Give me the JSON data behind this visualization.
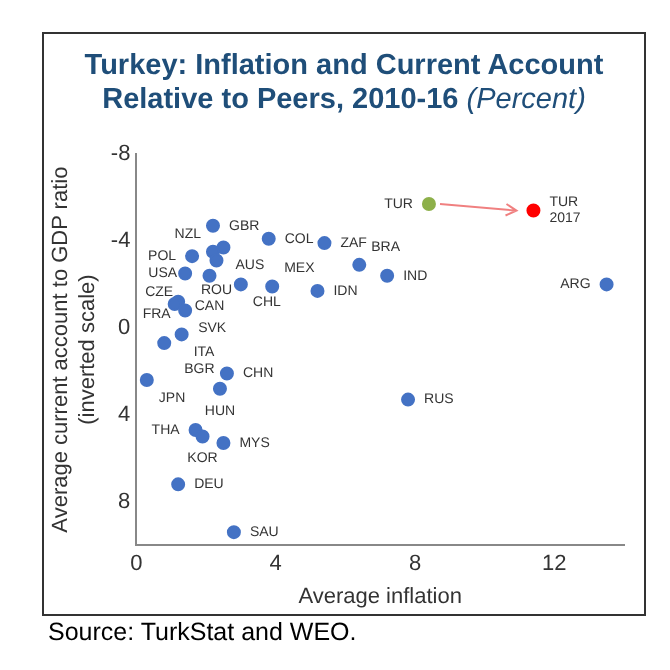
{
  "chart_data": {
    "type": "scatter",
    "title": "Turkey: Inflation and Current Account Relative to Peers, 2010-16",
    "subtitle": "(Percent)",
    "xlabel": "Average inflation",
    "ylabel": "Average current account to GDP ratio (inverted scale)",
    "xlim": [
      0,
      14
    ],
    "xticks": [
      0,
      4,
      8,
      12
    ],
    "ylim": [
      10,
      -8
    ],
    "yticks": [
      -8,
      -4,
      0,
      4,
      8
    ],
    "grid": false,
    "legend": false,
    "marker": "circle",
    "series": [
      {
        "color": "#4472c4",
        "x": [
          2.2,
          3.8,
          5.4,
          2.2,
          2.5,
          1.6,
          2.3,
          1.4,
          2.1,
          3.0,
          3.9,
          5.2,
          6.4,
          7.2,
          13.5,
          7.8,
          1.2,
          1.1,
          1.4,
          1.3,
          0.8,
          0.3,
          2.6,
          2.4,
          1.7,
          1.9,
          2.5,
          1.2,
          2.8
        ],
        "values": [
          -4.7,
          -4.1,
          -3.9,
          -3.5,
          -3.7,
          -3.3,
          -3.1,
          -2.5,
          -2.4,
          -2.0,
          -1.9,
          -1.7,
          -2.9,
          -2.4,
          -2.0,
          3.3,
          -1.2,
          -1.1,
          -0.8,
          0.3,
          0.7,
          2.4,
          2.1,
          2.8,
          4.7,
          5.0,
          5.3,
          7.2,
          9.4
        ]
      },
      {
        "color": "#8db04a",
        "x": [
          8.4
        ],
        "values": [
          -5.7
        ]
      },
      {
        "color": "#ff0000",
        "x": [
          11.4
        ],
        "values": [
          -5.4
        ]
      }
    ],
    "annotations": [
      {
        "text": "GBR",
        "x": 2.2,
        "y": -4.7
      },
      {
        "text": "COL",
        "x": 3.8,
        "y": -4.1
      },
      {
        "text": "ZAF",
        "x": 5.4,
        "y": -3.9
      },
      {
        "text": "NZL",
        "x": 2.2,
        "y": -3.5
      },
      {
        "text": "AUS",
        "x": 2.5,
        "y": -3.7
      },
      {
        "text": "POL",
        "x": 1.6,
        "y": -3.3
      },
      {
        "text": "ROU",
        "x": 2.3,
        "y": -3.1
      },
      {
        "text": "USA",
        "x": 1.4,
        "y": -2.5
      },
      {
        "text": "CAN",
        "x": 2.1,
        "y": -2.4
      },
      {
        "text": "CHL",
        "x": 3.0,
        "y": -2.0
      },
      {
        "text": "MEX",
        "x": 3.9,
        "y": -1.9
      },
      {
        "text": "IDN",
        "x": 5.2,
        "y": -1.7
      },
      {
        "text": "BRA",
        "x": 6.4,
        "y": -2.9
      },
      {
        "text": "IND",
        "x": 7.2,
        "y": -2.4
      },
      {
        "text": "ARG",
        "x": 13.5,
        "y": -2.0
      },
      {
        "text": "RUS",
        "x": 7.8,
        "y": 3.3
      },
      {
        "text": "SVK",
        "x": 1.2,
        "y": -1.2
      },
      {
        "text": "FRA",
        "x": 1.1,
        "y": -1.1
      },
      {
        "text": "CZE",
        "x": 1.4,
        "y": -0.8
      },
      {
        "text": "ITA",
        "x": 1.3,
        "y": 0.3
      },
      {
        "text": "BGR",
        "x": 0.8,
        "y": 0.7
      },
      {
        "text": "JPN",
        "x": 0.3,
        "y": 2.4
      },
      {
        "text": "CHN",
        "x": 2.6,
        "y": 2.1
      },
      {
        "text": "HUN",
        "x": 2.4,
        "y": 2.8
      },
      {
        "text": "THA",
        "x": 1.7,
        "y": 4.7
      },
      {
        "text": "KOR",
        "x": 1.9,
        "y": 5.0
      },
      {
        "text": "MYS",
        "x": 2.5,
        "y": 5.3
      },
      {
        "text": "DEU",
        "x": 1.2,
        "y": 7.2
      },
      {
        "text": "SAU",
        "x": 2.8,
        "y": 9.4
      },
      {
        "text": "TUR",
        "x": 8.4,
        "y": -5.7
      },
      {
        "text": "TUR 2017",
        "x": 11.4,
        "y": -5.4
      },
      "Source: TurkStat and WEO."
    ]
  }
}
